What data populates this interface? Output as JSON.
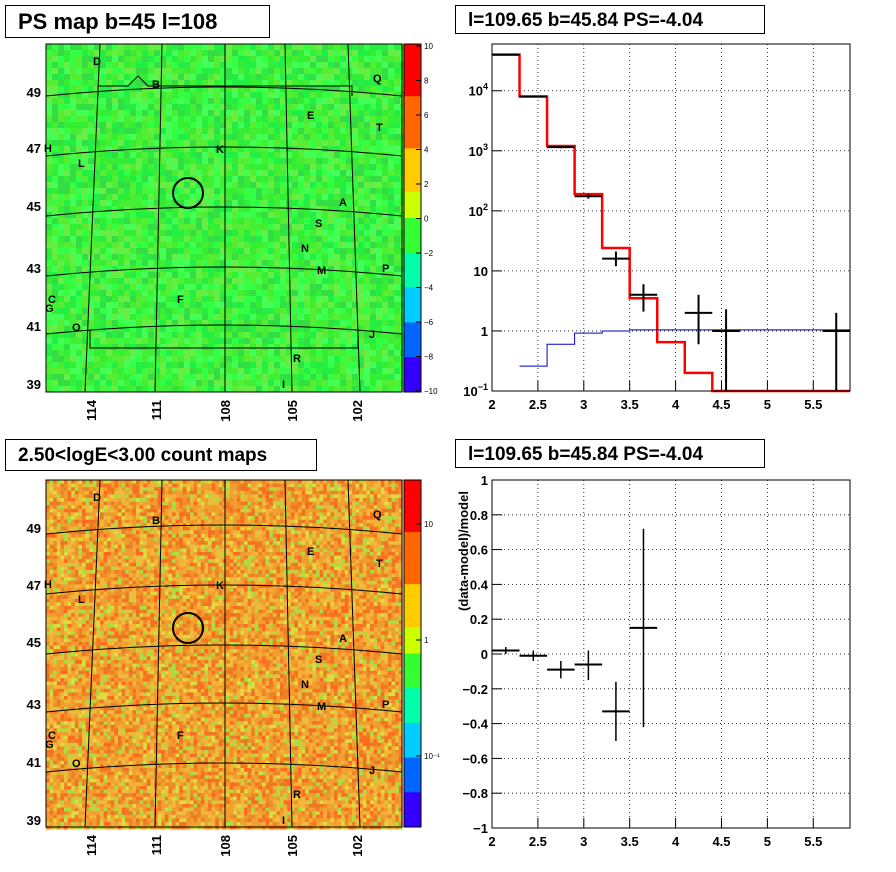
{
  "panels": {
    "ps_map": {
      "title": "PS map b=45 l=108",
      "colorbar_ticks": [
        "10",
        "8",
        "6",
        "4",
        "2",
        "0",
        "−2",
        "−4",
        "−6",
        "−8",
        "−10"
      ],
      "y_ticks": [
        "49",
        "47",
        "45",
        "43",
        "41",
        "39"
      ],
      "x_ticks": [
        "114",
        "111",
        "108",
        "105",
        "102"
      ],
      "labels": [
        "D",
        "B",
        "Q",
        "E",
        "T",
        "H",
        "K",
        "L",
        "A",
        "S",
        "N",
        "M",
        "P",
        "C",
        "G",
        "F",
        "O",
        "J",
        "R",
        "I"
      ]
    },
    "count_map": {
      "title": "2.50<logE<3.00 count maps",
      "colorbar_ticks": [
        "10",
        "1",
        "10⁻¹"
      ],
      "y_ticks": [
        "49",
        "47",
        "45",
        "43",
        "41",
        "39"
      ],
      "x_ticks": [
        "114",
        "111",
        "108",
        "105",
        "102"
      ],
      "labels": [
        "D",
        "B",
        "Q",
        "E",
        "T",
        "H",
        "K",
        "L",
        "A",
        "S",
        "N",
        "M",
        "P",
        "C",
        "G",
        "F",
        "O",
        "J",
        "R",
        "I"
      ]
    },
    "spectrum": {
      "title": "l=109.65 b=45.84 PS=-4.04"
    },
    "residual": {
      "title": "l=109.65 b=45.84 PS=-4.04",
      "ylabel": "(data-model)/model"
    }
  },
  "chart_data": [
    {
      "type": "heatmap",
      "title": "PS map b=45 l=108",
      "x_ticks": [
        114,
        111,
        108,
        105,
        102
      ],
      "y_ticks": [
        49,
        47,
        45,
        43,
        41,
        39
      ],
      "colorbar_range": [
        -10,
        10
      ],
      "colorbar_ticks": [
        10,
        8,
        6,
        4,
        2,
        0,
        -2,
        -4,
        -6,
        -8,
        -10
      ],
      "source_marker": {
        "l": 109.65,
        "b": 45.84
      },
      "dominant_color": "#33ee33"
    },
    {
      "type": "heatmap",
      "title": "2.50<logE<3.00 count maps",
      "x_ticks": [
        114,
        111,
        108,
        105,
        102
      ],
      "y_ticks": [
        49,
        47,
        45,
        43,
        41,
        39
      ],
      "colorbar_scale": "log",
      "colorbar_ticks": [
        "10",
        "1",
        "10^-1"
      ],
      "source_marker": {
        "l": 109.65,
        "b": 45.84
      },
      "dominant_color": "#f0a030"
    },
    {
      "type": "line",
      "title": "l=109.65 b=45.84 PS=-4.04",
      "xlim": [
        2,
        5.9
      ],
      "ylim": [
        0.1,
        60000
      ],
      "yscale": "log",
      "x_ticks": [
        2,
        2.5,
        3,
        3.5,
        4,
        4.5,
        5,
        5.5
      ],
      "y_ticks": [
        "10^-1",
        "1",
        "10",
        "10^2",
        "10^3",
        "10^4"
      ],
      "grid": true,
      "series": [
        {
          "color": "#ff0000",
          "style": "step",
          "edges": [
            2.0,
            2.3,
            2.6,
            2.9,
            3.2,
            3.5,
            3.8,
            4.1,
            4.4,
            5.9
          ],
          "values": [
            40000,
            8000,
            1200,
            190,
            24,
            3.5,
            0.65,
            0.2,
            0.1
          ]
        },
        {
          "color": "#0000cc",
          "style": "step",
          "edges": [
            2.3,
            2.6,
            2.9,
            3.2,
            3.5,
            5.9
          ],
          "values": [
            0.26,
            0.6,
            0.92,
            1.0,
            1.04
          ]
        },
        {
          "color": "#000000",
          "style": "errorbar",
          "points": [
            {
              "x": 2.15,
              "y": 40000,
              "xerr": 0.15,
              "ylo": 39000,
              "yhi": 41000
            },
            {
              "x": 2.45,
              "y": 8000,
              "xerr": 0.15,
              "ylo": 7800,
              "yhi": 8200
            },
            {
              "x": 2.75,
              "y": 1150,
              "xerr": 0.15,
              "ylo": 1100,
              "yhi": 1200
            },
            {
              "x": 3.05,
              "y": 175,
              "xerr": 0.15,
              "ylo": 160,
              "yhi": 190
            },
            {
              "x": 3.35,
              "y": 16,
              "xerr": 0.15,
              "ylo": 12,
              "yhi": 21
            },
            {
              "x": 3.65,
              "y": 4,
              "xerr": 0.15,
              "ylo": 2.1,
              "yhi": 6
            },
            {
              "x": 4.25,
              "y": 2,
              "xerr": 0.15,
              "ylo": 0.6,
              "yhi": 4
            },
            {
              "x": 4.55,
              "y": 1,
              "xerr": 0.15,
              "ylo": 0.1,
              "yhi": 2.3
            },
            {
              "x": 5.75,
              "y": 1,
              "xerr": 0.15,
              "ylo": 0.1,
              "yhi": 2
            }
          ]
        }
      ]
    },
    {
      "type": "scatter",
      "title": "l=109.65 b=45.84 PS=-4.04",
      "ylabel": "(data-model)/model",
      "xlim": [
        2,
        5.9
      ],
      "ylim": [
        -1,
        1
      ],
      "x_ticks": [
        2,
        2.5,
        3,
        3.5,
        4,
        4.5,
        5,
        5.5
      ],
      "y_ticks": [
        1,
        0.8,
        0.6,
        0.4,
        0.2,
        0,
        -0.2,
        -0.4,
        -0.6,
        -0.8,
        -1
      ],
      "grid": true,
      "points": [
        {
          "x": 2.15,
          "y": 0.02,
          "xerr": 0.15,
          "ylo": 0.0,
          "yhi": 0.04
        },
        {
          "x": 2.45,
          "y": -0.01,
          "xerr": 0.15,
          "ylo": -0.04,
          "yhi": 0.02
        },
        {
          "x": 2.75,
          "y": -0.09,
          "xerr": 0.15,
          "ylo": -0.14,
          "yhi": -0.04
        },
        {
          "x": 3.05,
          "y": -0.06,
          "xerr": 0.15,
          "ylo": -0.15,
          "yhi": 0.02
        },
        {
          "x": 3.35,
          "y": -0.33,
          "xerr": 0.15,
          "ylo": -0.5,
          "yhi": -0.16
        },
        {
          "x": 3.65,
          "y": 0.15,
          "xerr": 0.15,
          "ylo": -0.42,
          "yhi": 0.72
        }
      ]
    }
  ]
}
